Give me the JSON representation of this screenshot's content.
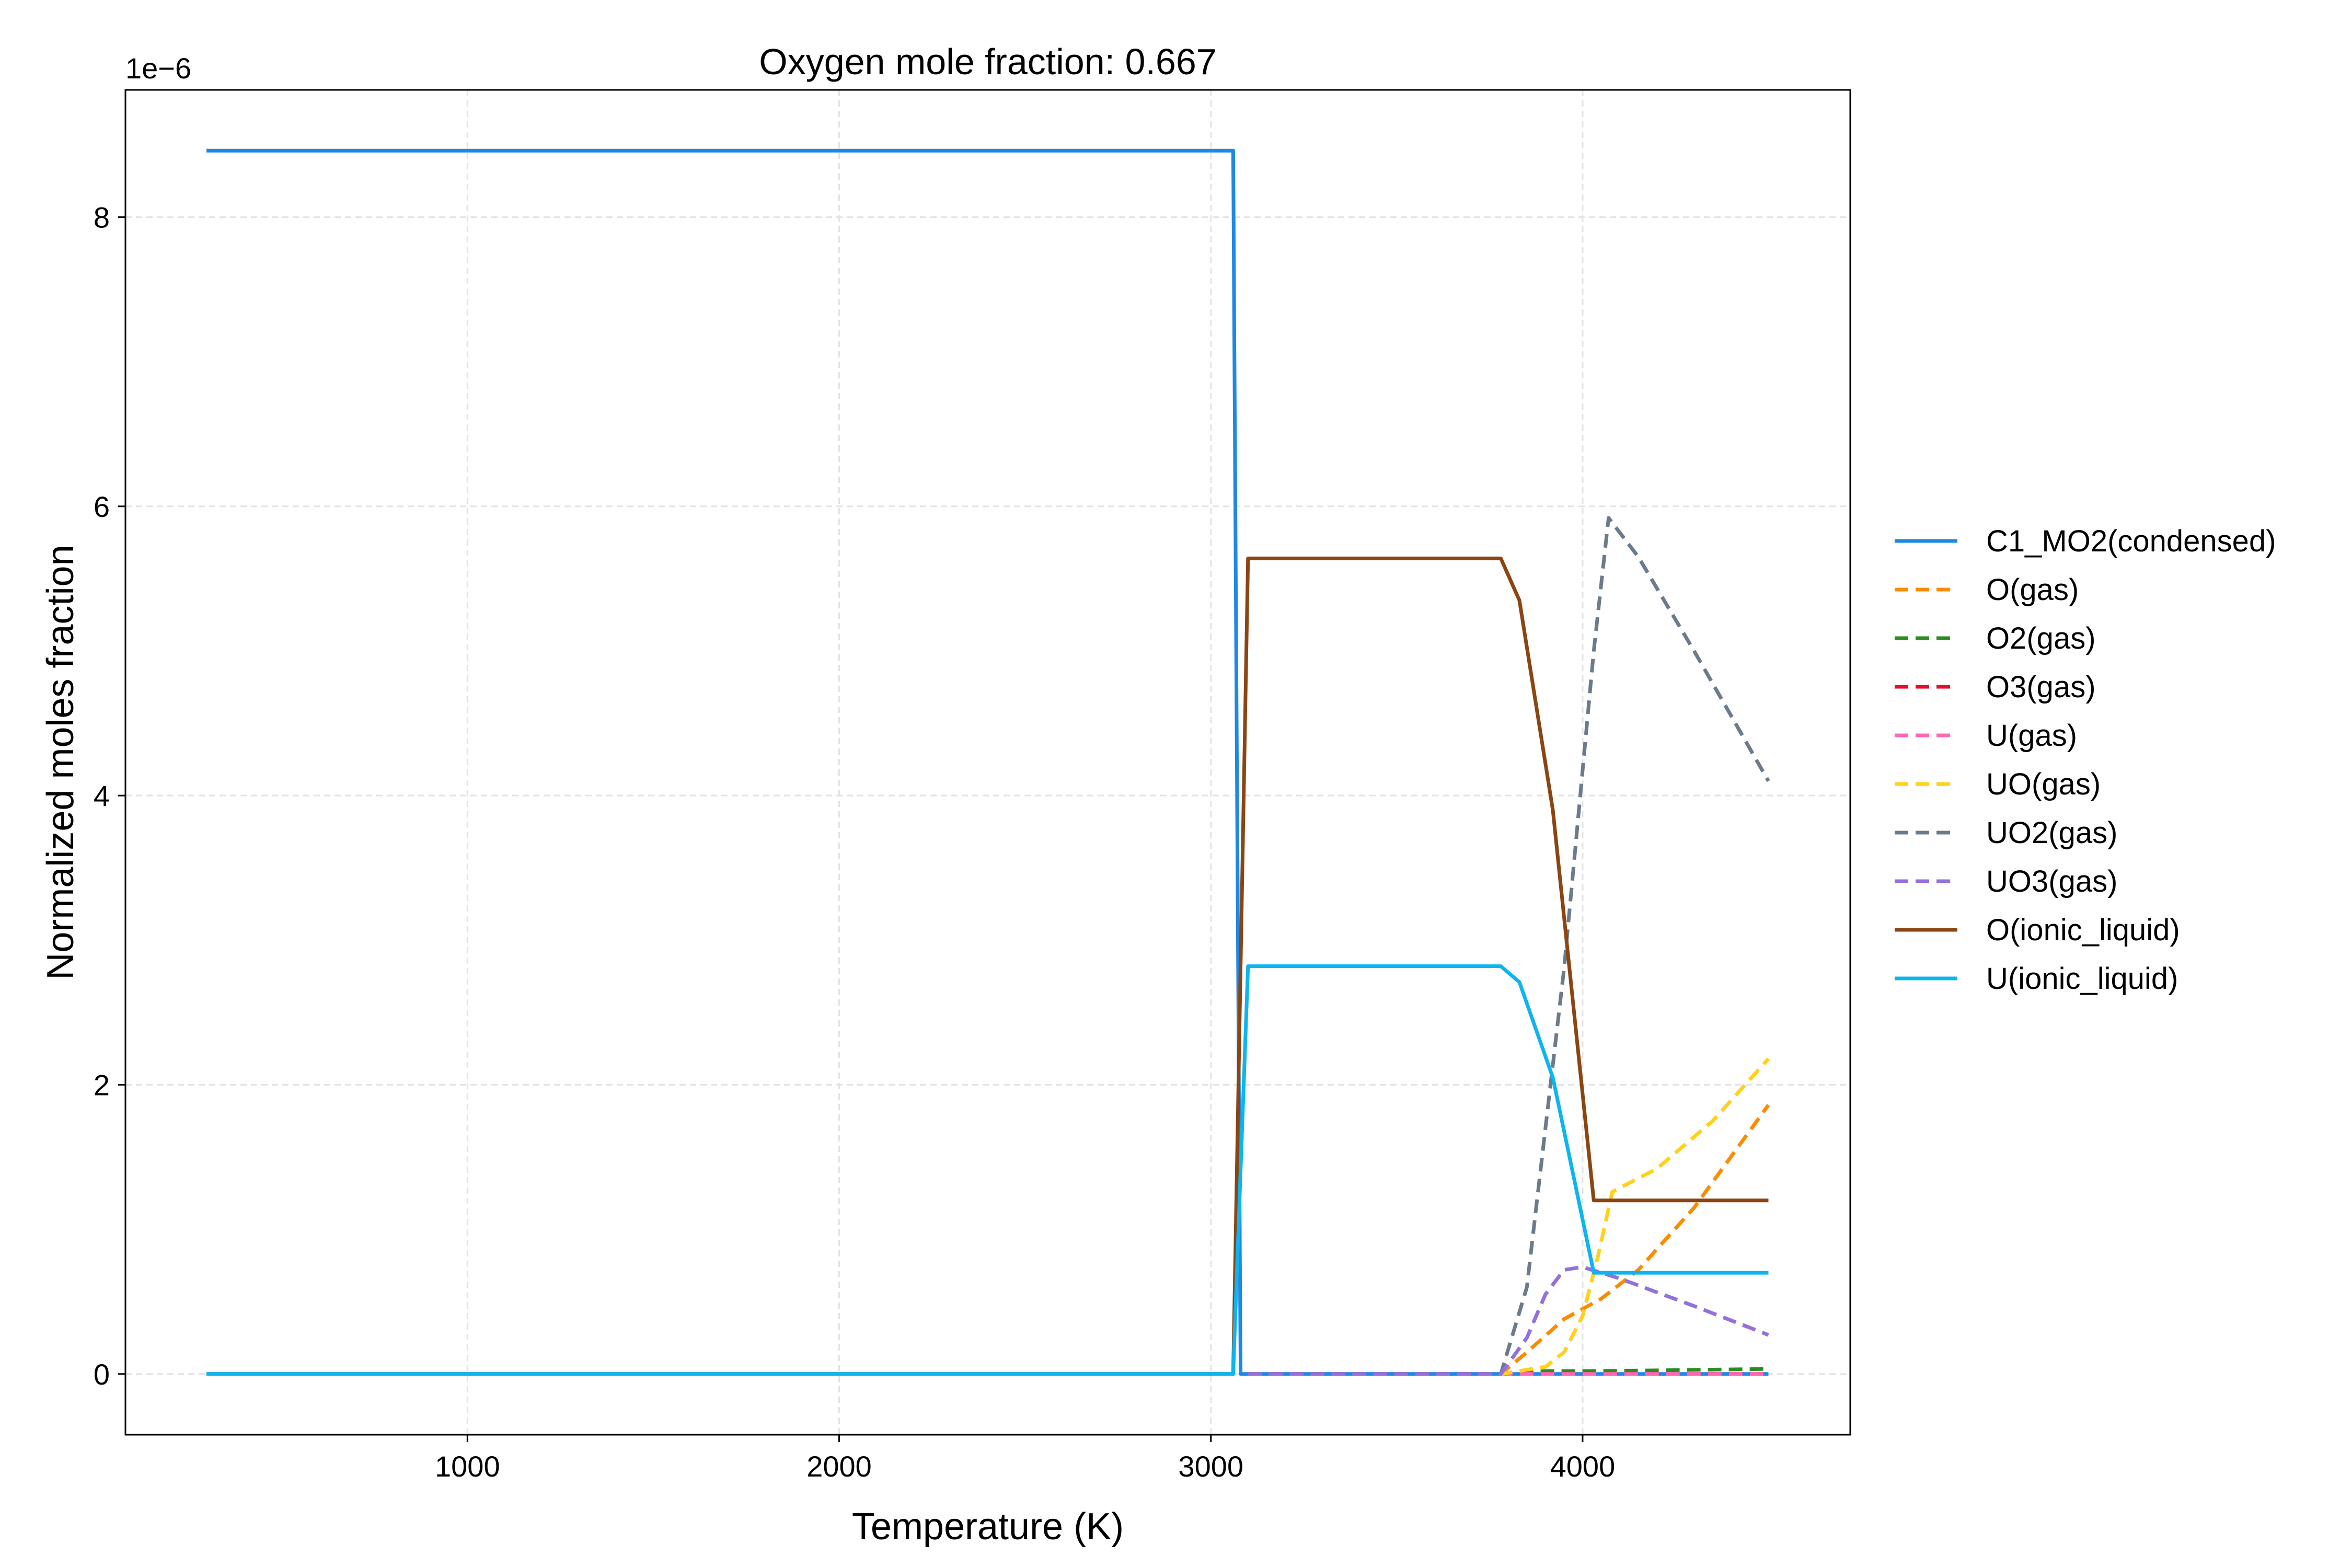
{
  "chart_data": {
    "type": "line",
    "title": "Oxygen mole fraction: 0.667",
    "xlabel": "Temperature (K)",
    "ylabel": "Normalized moles fraction",
    "y_offset_label": "1e−6",
    "xlim": [
      80,
      4720
    ],
    "ylim": [
      -0.42,
      8.88
    ],
    "xticks": [
      1000,
      2000,
      3000,
      4000
    ],
    "yticks": [
      0,
      2,
      4,
      6,
      8
    ],
    "grid": true,
    "legend_position": "right",
    "series": [
      {
        "name": "C1_MO2(condensed)",
        "color": "#1E88E5",
        "dash": "solid",
        "x": [
          298,
          3060,
          3080,
          3100,
          4500
        ],
        "y": [
          8.46,
          8.46,
          0.0,
          0.0,
          0.0
        ]
      },
      {
        "name": "O(gas)",
        "color": "#FB8C00",
        "dash": "dashed",
        "x": [
          3100,
          3780,
          3850,
          3950,
          4050,
          4150,
          4300,
          4500
        ],
        "y": [
          0,
          0,
          0.15,
          0.38,
          0.52,
          0.72,
          1.15,
          1.86
        ]
      },
      {
        "name": "O2(gas)",
        "color": "#2E8B22",
        "dash": "dashed",
        "x": [
          3100,
          3780,
          3900,
          4000,
          4200,
          4500
        ],
        "y": [
          0,
          0,
          0.02,
          0.02,
          0.025,
          0.035
        ]
      },
      {
        "name": "O3(gas)",
        "color": "#E0102D",
        "dash": "dashed",
        "x": [
          3100,
          4500
        ],
        "y": [
          0,
          0
        ]
      },
      {
        "name": "U(gas)",
        "color": "#FF69B4",
        "dash": "dashed",
        "x": [
          3100,
          4500
        ],
        "y": [
          0,
          0
        ]
      },
      {
        "name": "UO(gas)",
        "color": "#FFD11A",
        "dash": "dashed",
        "x": [
          3100,
          3780,
          3900,
          3950,
          4000,
          4040,
          4080,
          4200,
          4350,
          4500
        ],
        "y": [
          0,
          0,
          0.05,
          0.15,
          0.4,
          0.8,
          1.26,
          1.42,
          1.75,
          2.18
        ]
      },
      {
        "name": "UO2(gas)",
        "color": "#6B7B8C",
        "dash": "dashed",
        "x": [
          3100,
          3780,
          3850,
          3950,
          4030,
          4070,
          4150,
          4300,
          4500
        ],
        "y": [
          0,
          0,
          0.6,
          2.8,
          5.0,
          5.92,
          5.65,
          5.0,
          4.1
        ]
      },
      {
        "name": "UO3(gas)",
        "color": "#9370DB",
        "dash": "dashed",
        "x": [
          3100,
          3780,
          3850,
          3900,
          3950,
          4000,
          4100,
          4300,
          4500
        ],
        "y": [
          0,
          0,
          0.25,
          0.55,
          0.72,
          0.74,
          0.66,
          0.47,
          0.27
        ]
      },
      {
        "name": "O(ionic_liquid)",
        "color": "#8B4513",
        "dash": "solid",
        "x": [
          298,
          3060,
          3100,
          3780,
          3830,
          3920,
          4030,
          4500
        ],
        "y": [
          0,
          0,
          5.64,
          5.64,
          5.35,
          3.9,
          1.2,
          1.2
        ]
      },
      {
        "name": "U(ionic_liquid)",
        "color": "#0BB5F0",
        "dash": "solid",
        "x": [
          298,
          3060,
          3100,
          3780,
          3830,
          3920,
          4030,
          4500
        ],
        "y": [
          0,
          0,
          2.82,
          2.82,
          2.71,
          2.05,
          0.7,
          0.7
        ]
      }
    ]
  }
}
